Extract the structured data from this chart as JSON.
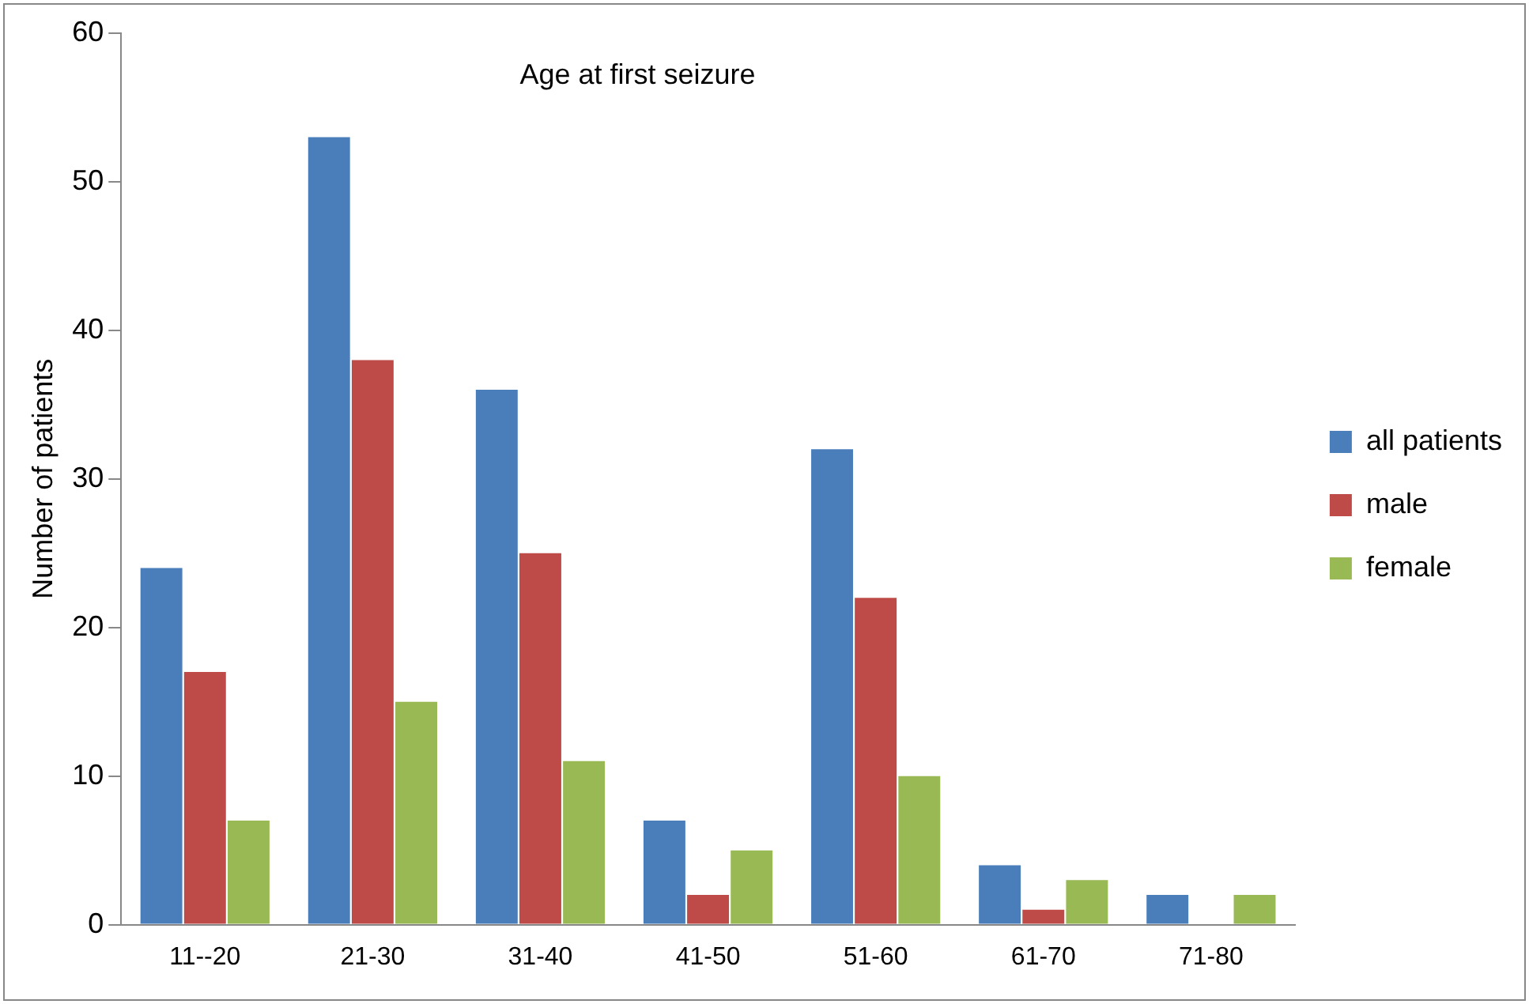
{
  "chart_data": {
    "type": "bar",
    "title": "Age at first seizure",
    "ylabel": "Number of patients",
    "categories": [
      "11--20",
      "21-30",
      "31-40",
      "41-50",
      "51-60",
      "61-70",
      "71-80"
    ],
    "series": [
      {
        "name": "all patients",
        "color": "#4a7ebb",
        "values": [
          24,
          53,
          36,
          7,
          32,
          4,
          2
        ]
      },
      {
        "name": "male",
        "color": "#be4b48",
        "values": [
          17,
          38,
          25,
          2,
          22,
          1,
          0
        ]
      },
      {
        "name": "female",
        "color": "#98b954",
        "values": [
          7,
          15,
          11,
          5,
          10,
          3,
          2
        ]
      }
    ],
    "ylim": [
      0,
      60
    ],
    "yticks": [
      0,
      10,
      20,
      30,
      40,
      50,
      60
    ],
    "grid": false,
    "legend": "right"
  }
}
